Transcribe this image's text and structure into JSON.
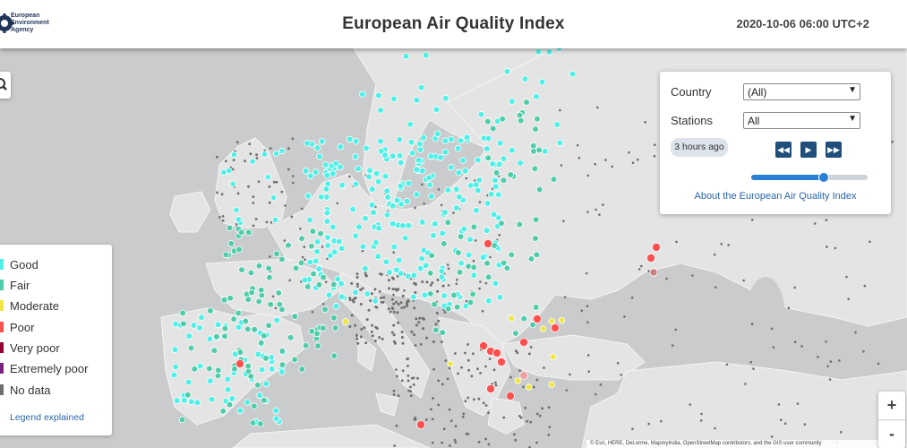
{
  "header": {
    "org_name": "European\nEnvironment\nAgency",
    "title": "European Air Quality Index",
    "timestamp": "2020-10-06 06:00 UTC+2"
  },
  "controls": {
    "country_label": "Country",
    "country_value": "(All)",
    "stations_label": "Stations",
    "stations_value": "All",
    "time_badge": "3 hours ago",
    "rewind_icon": "fast-backward-icon",
    "play_icon": "play-icon",
    "forward_icon": "fast-forward-icon",
    "slider_position": 0.62,
    "about_link": "About the European Air Quality Index"
  },
  "legend": {
    "items": [
      {
        "label": "Good",
        "color": "#50f0e6"
      },
      {
        "label": "Fair",
        "color": "#50ccaa"
      },
      {
        "label": "Moderate",
        "color": "#f0e641"
      },
      {
        "label": "Poor",
        "color": "#ff5050"
      },
      {
        "label": "Very poor",
        "color": "#960032"
      },
      {
        "label": "Extremely poor",
        "color": "#7d2181"
      },
      {
        "label": "No data",
        "color": "#6e6e6e"
      }
    ],
    "link": "Legend explained"
  },
  "map": {
    "search_icon": "search-icon",
    "zoom_in": "+",
    "zoom_out": "-",
    "attribution": "© Esri, HERE, DeLorme, MapmyIndia, OpenStreetMap contributors, and the GIS user community"
  }
}
